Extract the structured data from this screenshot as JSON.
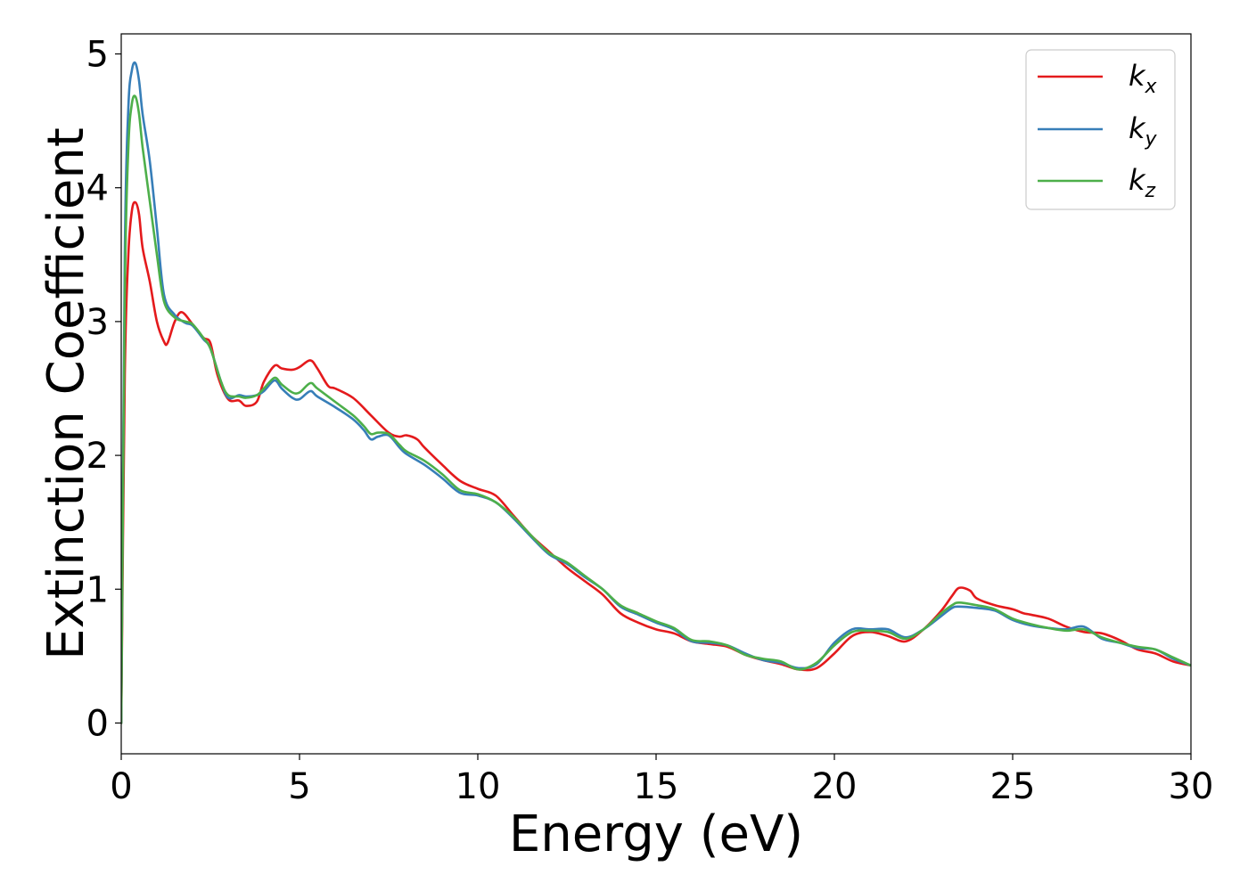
{
  "chart_data": {
    "type": "line",
    "xlabel": "Energy (eV)",
    "ylabel": "Extinction Coefficient",
    "xlim": [
      0,
      30
    ],
    "ylim": [
      -0.23,
      5.15
    ],
    "xticks": [
      0,
      5,
      10,
      15,
      20,
      25,
      30
    ],
    "yticks": [
      0,
      1,
      2,
      3,
      4,
      5
    ],
    "grid": false,
    "legend_position": "top-right",
    "colors": {
      "kx": "#e41a1c",
      "ky": "#377eb8",
      "kz": "#4daf4a"
    },
    "legend": [
      {
        "base": "k",
        "sub": "x"
      },
      {
        "base": "k",
        "sub": "y"
      },
      {
        "base": "k",
        "sub": "z"
      }
    ],
    "series": [
      {
        "key": "kx",
        "x": [
          0,
          0.1,
          0.2,
          0.3,
          0.4,
          0.5,
          0.6,
          0.8,
          1.0,
          1.2,
          1.3,
          1.5,
          1.7,
          2.0,
          2.3,
          2.5,
          2.7,
          3.0,
          3.3,
          3.5,
          3.8,
          4.0,
          4.3,
          4.5,
          4.8,
          5.0,
          5.3,
          5.5,
          5.8,
          6.0,
          6.5,
          7.0,
          7.5,
          7.8,
          8.0,
          8.3,
          8.5,
          9.0,
          9.5,
          10.0,
          10.5,
          11.0,
          11.5,
          12.0,
          12.5,
          13.0,
          13.5,
          14.0,
          14.5,
          15.0,
          15.5,
          16.0,
          16.5,
          17.0,
          17.5,
          18.0,
          18.5,
          19.0,
          19.5,
          20.0,
          20.5,
          21.0,
          21.5,
          22.0,
          22.5,
          23.0,
          23.3,
          23.5,
          23.8,
          24.0,
          24.5,
          25.0,
          25.3,
          25.5,
          26.0,
          26.5,
          27.0,
          27.5,
          28.0,
          28.5,
          29.0,
          29.5,
          30.0
        ],
        "y": [
          0,
          2.6,
          3.5,
          3.83,
          3.89,
          3.8,
          3.55,
          3.3,
          3.0,
          2.85,
          2.84,
          3.0,
          3.07,
          2.98,
          2.88,
          2.84,
          2.6,
          2.42,
          2.41,
          2.37,
          2.4,
          2.55,
          2.67,
          2.65,
          2.64,
          2.66,
          2.71,
          2.65,
          2.52,
          2.5,
          2.43,
          2.3,
          2.17,
          2.14,
          2.15,
          2.12,
          2.06,
          1.93,
          1.81,
          1.75,
          1.7,
          1.55,
          1.4,
          1.28,
          1.16,
          1.06,
          0.96,
          0.82,
          0.75,
          0.7,
          0.67,
          0.61,
          0.59,
          0.57,
          0.51,
          0.47,
          0.44,
          0.4,
          0.41,
          0.52,
          0.65,
          0.68,
          0.65,
          0.61,
          0.7,
          0.84,
          0.95,
          1.01,
          0.99,
          0.93,
          0.88,
          0.85,
          0.82,
          0.81,
          0.78,
          0.72,
          0.68,
          0.67,
          0.62,
          0.55,
          0.52,
          0.46,
          0.43
        ]
      },
      {
        "key": "ky",
        "x": [
          0,
          0.1,
          0.2,
          0.3,
          0.4,
          0.5,
          0.6,
          0.8,
          1.0,
          1.2,
          1.5,
          1.8,
          2.0,
          2.3,
          2.5,
          2.8,
          3.0,
          3.3,
          3.5,
          3.8,
          4.0,
          4.3,
          4.5,
          4.8,
          5.0,
          5.3,
          5.5,
          6.0,
          6.5,
          6.8,
          7.0,
          7.2,
          7.5,
          7.8,
          8.0,
          8.5,
          9.0,
          9.5,
          10.0,
          10.5,
          11.0,
          11.5,
          12.0,
          12.5,
          13.0,
          13.5,
          14.0,
          14.5,
          15.0,
          15.5,
          16.0,
          16.5,
          17.0,
          17.5,
          18.0,
          18.5,
          19.0,
          19.5,
          20.0,
          20.5,
          21.0,
          21.5,
          22.0,
          22.5,
          23.0,
          23.3,
          23.5,
          24.0,
          24.5,
          25.0,
          25.5,
          26.0,
          26.5,
          27.0,
          27.5,
          28.0,
          28.5,
          29.0,
          29.5,
          30.0
        ],
        "y": [
          0,
          3.5,
          4.6,
          4.88,
          4.93,
          4.8,
          4.55,
          4.2,
          3.7,
          3.2,
          3.05,
          2.99,
          2.97,
          2.87,
          2.8,
          2.55,
          2.43,
          2.45,
          2.44,
          2.45,
          2.48,
          2.56,
          2.5,
          2.43,
          2.42,
          2.48,
          2.44,
          2.36,
          2.27,
          2.19,
          2.12,
          2.14,
          2.15,
          2.06,
          2.01,
          1.93,
          1.83,
          1.72,
          1.7,
          1.65,
          1.53,
          1.39,
          1.26,
          1.19,
          1.09,
          1.0,
          0.87,
          0.81,
          0.75,
          0.7,
          0.61,
          0.6,
          0.58,
          0.52,
          0.47,
          0.45,
          0.41,
          0.44,
          0.6,
          0.7,
          0.7,
          0.7,
          0.64,
          0.7,
          0.8,
          0.86,
          0.87,
          0.86,
          0.84,
          0.77,
          0.73,
          0.71,
          0.7,
          0.72,
          0.63,
          0.6,
          0.56,
          0.55,
          0.48,
          0.43
        ]
      },
      {
        "key": "kz",
        "x": [
          0,
          0.1,
          0.2,
          0.3,
          0.4,
          0.5,
          0.6,
          0.8,
          1.0,
          1.2,
          1.5,
          1.8,
          2.0,
          2.3,
          2.5,
          2.8,
          3.0,
          3.3,
          3.5,
          3.8,
          4.0,
          4.3,
          4.5,
          4.8,
          5.0,
          5.3,
          5.5,
          6.0,
          6.5,
          6.8,
          7.0,
          7.2,
          7.5,
          7.8,
          8.0,
          8.5,
          9.0,
          9.5,
          10.0,
          10.5,
          11.0,
          11.5,
          12.0,
          12.5,
          13.0,
          13.5,
          14.0,
          14.5,
          15.0,
          15.5,
          16.0,
          16.5,
          17.0,
          17.5,
          18.0,
          18.5,
          19.0,
          19.5,
          20.0,
          20.5,
          21.0,
          21.5,
          22.0,
          22.5,
          23.0,
          23.3,
          23.5,
          24.0,
          24.5,
          25.0,
          25.5,
          26.0,
          26.5,
          27.0,
          27.5,
          28.0,
          28.5,
          29.0,
          29.5,
          30.0
        ],
        "y": [
          0,
          3.2,
          4.3,
          4.63,
          4.68,
          4.55,
          4.3,
          3.9,
          3.5,
          3.15,
          3.03,
          3.0,
          2.98,
          2.88,
          2.8,
          2.55,
          2.45,
          2.44,
          2.43,
          2.45,
          2.5,
          2.58,
          2.53,
          2.47,
          2.47,
          2.54,
          2.5,
          2.4,
          2.3,
          2.22,
          2.16,
          2.17,
          2.16,
          2.08,
          2.03,
          1.96,
          1.86,
          1.74,
          1.71,
          1.65,
          1.54,
          1.4,
          1.27,
          1.2,
          1.1,
          1.0,
          0.88,
          0.82,
          0.76,
          0.71,
          0.62,
          0.61,
          0.58,
          0.51,
          0.48,
          0.46,
          0.4,
          0.45,
          0.58,
          0.68,
          0.69,
          0.68,
          0.63,
          0.7,
          0.82,
          0.88,
          0.9,
          0.88,
          0.85,
          0.78,
          0.74,
          0.71,
          0.69,
          0.7,
          0.64,
          0.6,
          0.57,
          0.55,
          0.49,
          0.43
        ]
      }
    ]
  }
}
